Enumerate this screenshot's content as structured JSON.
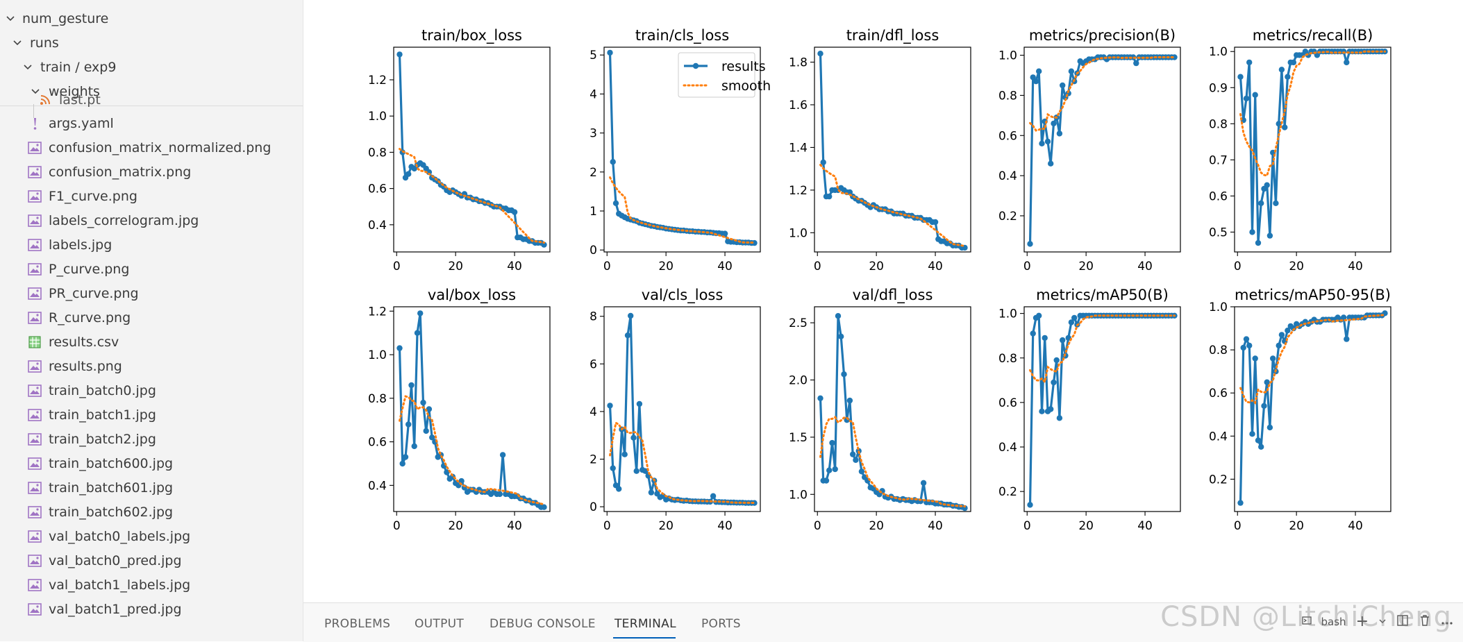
{
  "explorer": {
    "folders": [
      {
        "label": "num_gesture",
        "expanded": true
      },
      {
        "label": "runs",
        "expanded": true
      },
      {
        "label": "train / exp9",
        "expanded": true
      },
      {
        "label": "weights",
        "expanded": true
      }
    ],
    "files": [
      {
        "label": "last.pt",
        "icon": "rss-icon"
      },
      {
        "label": "args.yaml",
        "icon": "yaml-icon"
      },
      {
        "label": "confusion_matrix_normalized.png",
        "icon": "image-icon"
      },
      {
        "label": "confusion_matrix.png",
        "icon": "image-icon"
      },
      {
        "label": "F1_curve.png",
        "icon": "image-icon"
      },
      {
        "label": "labels_correlogram.jpg",
        "icon": "image-icon"
      },
      {
        "label": "labels.jpg",
        "icon": "image-icon"
      },
      {
        "label": "P_curve.png",
        "icon": "image-icon"
      },
      {
        "label": "PR_curve.png",
        "icon": "image-icon"
      },
      {
        "label": "R_curve.png",
        "icon": "image-icon"
      },
      {
        "label": "results.csv",
        "icon": "csv-icon"
      },
      {
        "label": "results.png",
        "icon": "image-icon"
      },
      {
        "label": "train_batch0.jpg",
        "icon": "image-icon"
      },
      {
        "label": "train_batch1.jpg",
        "icon": "image-icon"
      },
      {
        "label": "train_batch2.jpg",
        "icon": "image-icon"
      },
      {
        "label": "train_batch600.jpg",
        "icon": "image-icon"
      },
      {
        "label": "train_batch601.jpg",
        "icon": "image-icon"
      },
      {
        "label": "train_batch602.jpg",
        "icon": "image-icon"
      },
      {
        "label": "val_batch0_labels.jpg",
        "icon": "image-icon"
      },
      {
        "label": "val_batch0_pred.jpg",
        "icon": "image-icon"
      },
      {
        "label": "val_batch1_labels.jpg",
        "icon": "image-icon"
      },
      {
        "label": "val_batch1_pred.jpg",
        "icon": "image-icon"
      }
    ]
  },
  "panel": {
    "tabs": [
      "PROBLEMS",
      "OUTPUT",
      "DEBUG CONSOLE",
      "TERMINAL",
      "PORTS"
    ],
    "active_tab": "TERMINAL",
    "terminal_label": "bash",
    "add_label": "+"
  },
  "watermark": "CSDN @LitchiCheng",
  "colors": {
    "series": "#1f77b4",
    "smooth": "#ff7f0e"
  },
  "chart_data": {
    "legend": {
      "results": "results",
      "smooth": "smooth",
      "position": "top-right"
    },
    "x": [
      1,
      2,
      3,
      4,
      5,
      6,
      7,
      8,
      9,
      10,
      11,
      12,
      13,
      14,
      15,
      16,
      17,
      18,
      19,
      20,
      21,
      22,
      23,
      24,
      25,
      26,
      27,
      28,
      29,
      30,
      31,
      32,
      33,
      34,
      35,
      36,
      37,
      38,
      39,
      40,
      41,
      42,
      43,
      44,
      45,
      46,
      47,
      48,
      49,
      50
    ],
    "panels": [
      {
        "type": "line",
        "title": "train/box_loss",
        "xlim": [
          -1,
          52
        ],
        "ylim": [
          0.25,
          1.38
        ],
        "yticks": [
          0.4,
          0.6,
          0.8,
          1.0,
          1.2
        ],
        "ytick_labels": [
          "0.4",
          "0.6",
          "0.8",
          "1.0",
          "1.2"
        ],
        "xticks": [
          0,
          20,
          40
        ],
        "xtick_labels": [
          "0",
          "20",
          "40"
        ],
        "show_legend": false,
        "values": [
          1.34,
          0.8,
          0.66,
          0.68,
          0.72,
          0.71,
          0.73,
          0.74,
          0.73,
          0.71,
          0.69,
          0.66,
          0.65,
          0.64,
          0.62,
          0.61,
          0.59,
          0.58,
          0.59,
          0.58,
          0.57,
          0.56,
          0.57,
          0.55,
          0.55,
          0.54,
          0.54,
          0.53,
          0.53,
          0.52,
          0.52,
          0.51,
          0.5,
          0.5,
          0.5,
          0.49,
          0.49,
          0.48,
          0.48,
          0.47,
          0.33,
          0.33,
          0.32,
          0.32,
          0.31,
          0.31,
          0.3,
          0.3,
          0.3,
          0.29
        ]
      },
      {
        "type": "line",
        "title": "train/cls_loss",
        "xlim": [
          -1,
          52
        ],
        "ylim": [
          -0.05,
          5.2
        ],
        "yticks": [
          0,
          1,
          2,
          3,
          4,
          5
        ],
        "ytick_labels": [
          "0",
          "1",
          "2",
          "3",
          "4",
          "5"
        ],
        "xticks": [
          0,
          20,
          40
        ],
        "xtick_labels": [
          "0",
          "20",
          "40"
        ],
        "show_legend": true,
        "values": [
          5.06,
          2.26,
          1.2,
          0.93,
          0.88,
          0.84,
          0.8,
          0.78,
          0.76,
          0.74,
          0.7,
          0.68,
          0.66,
          0.64,
          0.62,
          0.61,
          0.59,
          0.58,
          0.57,
          0.55,
          0.54,
          0.53,
          0.52,
          0.51,
          0.5,
          0.5,
          0.49,
          0.48,
          0.48,
          0.47,
          0.47,
          0.46,
          0.46,
          0.45,
          0.45,
          0.44,
          0.43,
          0.43,
          0.42,
          0.42,
          0.22,
          0.21,
          0.21,
          0.2,
          0.2,
          0.19,
          0.19,
          0.19,
          0.18,
          0.18
        ]
      },
      {
        "type": "line",
        "title": "train/dfl_loss",
        "xlim": [
          -1,
          52
        ],
        "ylim": [
          0.91,
          1.87
        ],
        "yticks": [
          1.0,
          1.2,
          1.4,
          1.6,
          1.8
        ],
        "ytick_labels": [
          "1.0",
          "1.2",
          "1.4",
          "1.6",
          "1.8"
        ],
        "xticks": [
          0,
          20,
          40
        ],
        "xtick_labels": [
          "0",
          "20",
          "40"
        ],
        "show_legend": false,
        "values": [
          1.84,
          1.33,
          1.17,
          1.17,
          1.2,
          1.2,
          1.2,
          1.21,
          1.2,
          1.19,
          1.19,
          1.17,
          1.16,
          1.15,
          1.15,
          1.14,
          1.13,
          1.12,
          1.13,
          1.12,
          1.11,
          1.11,
          1.11,
          1.1,
          1.1,
          1.09,
          1.09,
          1.09,
          1.09,
          1.08,
          1.08,
          1.08,
          1.07,
          1.07,
          1.07,
          1.06,
          1.06,
          1.06,
          1.05,
          1.05,
          0.97,
          0.96,
          0.96,
          0.95,
          0.95,
          0.94,
          0.94,
          0.94,
          0.93,
          0.93
        ]
      },
      {
        "type": "line",
        "title": "metrics/precision(B)",
        "xlim": [
          -1,
          52
        ],
        "ylim": [
          0.02,
          1.04
        ],
        "yticks": [
          0.2,
          0.4,
          0.6,
          0.8,
          1.0
        ],
        "ytick_labels": [
          "0.2",
          "0.4",
          "0.6",
          "0.8",
          "1.0"
        ],
        "xticks": [
          0,
          20,
          40
        ],
        "xtick_labels": [
          "0",
          "20",
          "40"
        ],
        "show_legend": false,
        "values": [
          0.06,
          0.89,
          0.87,
          0.92,
          0.56,
          0.67,
          0.57,
          0.46,
          0.66,
          0.69,
          0.61,
          0.85,
          0.79,
          0.81,
          0.92,
          0.87,
          0.91,
          0.97,
          0.96,
          0.97,
          0.98,
          0.98,
          0.98,
          0.99,
          0.99,
          0.99,
          0.98,
          0.99,
          0.99,
          0.99,
          0.99,
          0.99,
          0.99,
          0.99,
          0.99,
          0.99,
          0.96,
          0.99,
          0.99,
          0.99,
          0.99,
          0.99,
          0.99,
          0.99,
          0.99,
          0.99,
          0.99,
          0.99,
          0.99,
          0.99
        ]
      },
      {
        "type": "line",
        "title": "metrics/recall(B)",
        "xlim": [
          -1,
          52
        ],
        "ylim": [
          0.445,
          1.012
        ],
        "yticks": [
          0.5,
          0.6,
          0.7,
          0.8,
          0.9,
          1.0
        ],
        "ytick_labels": [
          "0.5",
          "0.6",
          "0.7",
          "0.8",
          "0.9",
          "1.0"
        ],
        "xticks": [
          0,
          20,
          40
        ],
        "xtick_labels": [
          "0",
          "20",
          "40"
        ],
        "show_legend": false,
        "values": [
          0.93,
          0.81,
          0.87,
          0.97,
          0.5,
          0.88,
          0.47,
          0.58,
          0.62,
          0.63,
          0.49,
          0.72,
          0.58,
          0.8,
          0.95,
          0.79,
          0.93,
          0.97,
          0.97,
          0.99,
          0.99,
          0.99,
          1.0,
          0.99,
          1.0,
          1.0,
          0.99,
          1.0,
          1.0,
          1.0,
          1.0,
          1.0,
          1.0,
          1.0,
          1.0,
          1.0,
          0.97,
          1.0,
          1.0,
          1.0,
          1.0,
          1.0,
          1.0,
          1.0,
          1.0,
          1.0,
          1.0,
          1.0,
          1.0,
          1.0
        ]
      },
      {
        "type": "line",
        "title": "val/box_loss",
        "xlim": [
          -1,
          52
        ],
        "ylim": [
          0.28,
          1.22
        ],
        "yticks": [
          0.4,
          0.6,
          0.8,
          1.0,
          1.2
        ],
        "ytick_labels": [
          "0.4",
          "0.6",
          "0.8",
          "1.0",
          "1.2"
        ],
        "xticks": [
          0,
          20,
          40
        ],
        "xtick_labels": [
          "0",
          "20",
          "40"
        ],
        "show_legend": false,
        "values": [
          1.03,
          0.5,
          0.53,
          0.68,
          0.86,
          0.58,
          1.1,
          1.19,
          0.78,
          0.65,
          0.75,
          0.62,
          0.6,
          0.53,
          0.54,
          0.49,
          0.46,
          0.43,
          0.44,
          0.41,
          0.4,
          0.42,
          0.39,
          0.37,
          0.38,
          0.38,
          0.37,
          0.38,
          0.37,
          0.37,
          0.37,
          0.36,
          0.37,
          0.36,
          0.36,
          0.54,
          0.36,
          0.36,
          0.35,
          0.35,
          0.35,
          0.34,
          0.34,
          0.33,
          0.33,
          0.32,
          0.32,
          0.31,
          0.3,
          0.3
        ]
      },
      {
        "type": "line",
        "title": "val/cls_loss",
        "xlim": [
          -1,
          52
        ],
        "ylim": [
          -0.2,
          8.4
        ],
        "yticks": [
          0,
          2,
          4,
          6,
          8
        ],
        "ytick_labels": [
          "0",
          "2",
          "4",
          "6",
          "8"
        ],
        "xticks": [
          0,
          20,
          40
        ],
        "xtick_labels": [
          "0",
          "20",
          "40"
        ],
        "show_legend": false,
        "values": [
          4.25,
          1.62,
          0.9,
          0.75,
          3.25,
          2.2,
          7.2,
          8.02,
          2.9,
          1.5,
          4.32,
          1.55,
          1.5,
          1.3,
          0.6,
          1.1,
          0.55,
          0.4,
          0.45,
          0.3,
          0.35,
          0.3,
          0.28,
          0.3,
          0.27,
          0.25,
          0.26,
          0.24,
          0.23,
          0.23,
          0.22,
          0.22,
          0.22,
          0.21,
          0.21,
          0.45,
          0.2,
          0.2,
          0.19,
          0.19,
          0.18,
          0.18,
          0.18,
          0.17,
          0.17,
          0.17,
          0.16,
          0.16,
          0.16,
          0.16
        ]
      },
      {
        "type": "line",
        "title": "val/dfl_loss",
        "xlim": [
          -1,
          52
        ],
        "ylim": [
          0.85,
          2.64
        ],
        "yticks": [
          1.0,
          1.5,
          2.0,
          2.5
        ],
        "ytick_labels": [
          "1.0",
          "1.5",
          "2.0",
          "2.5"
        ],
        "xticks": [
          0,
          20,
          40
        ],
        "xtick_labels": [
          "0",
          "20",
          "40"
        ],
        "show_legend": false,
        "values": [
          1.84,
          1.12,
          1.12,
          1.21,
          1.45,
          1.22,
          2.56,
          2.38,
          2.05,
          1.65,
          1.82,
          1.35,
          1.3,
          1.38,
          1.2,
          1.15,
          1.12,
          1.06,
          1.05,
          1.02,
          1.0,
          1.03,
          0.98,
          0.97,
          0.98,
          0.96,
          0.96,
          0.95,
          0.96,
          0.95,
          0.95,
          0.94,
          0.95,
          0.94,
          0.94,
          1.1,
          0.93,
          0.93,
          0.93,
          0.92,
          0.92,
          0.92,
          0.91,
          0.91,
          0.91,
          0.9,
          0.9,
          0.89,
          0.89,
          0.88
        ]
      },
      {
        "type": "line",
        "title": "metrics/mAP50(B)",
        "xlim": [
          -1,
          52
        ],
        "ylim": [
          0.11,
          1.03
        ],
        "yticks": [
          0.2,
          0.4,
          0.6,
          0.8,
          1.0
        ],
        "ytick_labels": [
          "0.2",
          "0.4",
          "0.6",
          "0.8",
          "1.0"
        ],
        "xticks": [
          0,
          20,
          40
        ],
        "xtick_labels": [
          "0",
          "20",
          "40"
        ],
        "show_legend": false,
        "values": [
          0.14,
          0.91,
          0.98,
          0.99,
          0.56,
          0.89,
          0.56,
          0.57,
          0.69,
          0.79,
          0.53,
          0.88,
          0.81,
          0.89,
          0.96,
          0.98,
          0.95,
          0.99,
          0.99,
          0.99,
          0.99,
          0.99,
          0.99,
          0.99,
          0.99,
          0.99,
          0.99,
          0.99,
          0.99,
          0.99,
          0.99,
          0.99,
          0.99,
          0.99,
          0.99,
          0.99,
          0.99,
          0.99,
          0.99,
          0.99,
          0.99,
          0.99,
          0.99,
          0.99,
          0.99,
          0.99,
          0.99,
          0.99,
          0.99,
          0.99
        ]
      },
      {
        "type": "line",
        "title": "metrics/mAP50-95(B)",
        "xlim": [
          -1,
          52
        ],
        "ylim": [
          0.05,
          1.0
        ],
        "yticks": [
          0.2,
          0.4,
          0.6,
          0.8,
          1.0
        ],
        "ytick_labels": [
          "0.2",
          "0.4",
          "0.6",
          "0.8",
          "1.0"
        ],
        "xticks": [
          0,
          20,
          40
        ],
        "xtick_labels": [
          "0",
          "20",
          "40"
        ],
        "show_legend": false,
        "values": [
          0.09,
          0.81,
          0.85,
          0.82,
          0.41,
          0.76,
          0.38,
          0.35,
          0.54,
          0.65,
          0.44,
          0.76,
          0.7,
          0.82,
          0.87,
          0.84,
          0.89,
          0.91,
          0.9,
          0.92,
          0.91,
          0.92,
          0.93,
          0.92,
          0.93,
          0.94,
          0.93,
          0.93,
          0.94,
          0.94,
          0.94,
          0.94,
          0.94,
          0.95,
          0.94,
          0.95,
          0.85,
          0.95,
          0.95,
          0.95,
          0.95,
          0.95,
          0.95,
          0.96,
          0.96,
          0.96,
          0.96,
          0.96,
          0.96,
          0.97
        ]
      }
    ]
  }
}
